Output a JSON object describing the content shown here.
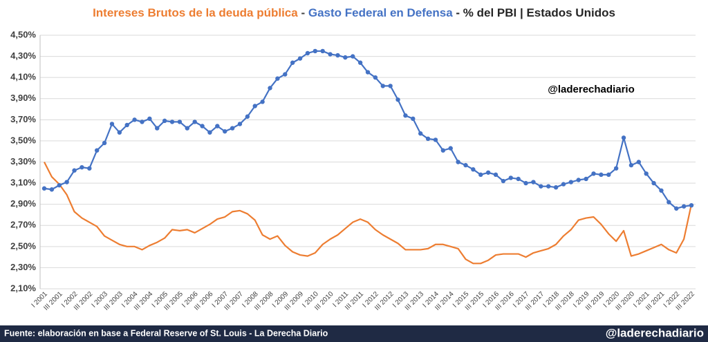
{
  "chart_data": {
    "type": "line",
    "title_separator": "-",
    "title_suffix": "- % del PBI | Estados Unidos",
    "annotation": "@laderechadiario",
    "categories": [
      "I 2001",
      null,
      "III 2001",
      null,
      "I 2002",
      null,
      "III 2002",
      null,
      "I 2003",
      null,
      "III 2003",
      null,
      "I 2004",
      null,
      "III 2004",
      null,
      "I 2005",
      null,
      "III 2005",
      null,
      "I 2006",
      null,
      "III 2006",
      null,
      "I 2007",
      null,
      "III 2007",
      null,
      "I 2008",
      null,
      "III 2008",
      null,
      "I 2009",
      null,
      "III 2009",
      null,
      "I 2010",
      null,
      "III 2010",
      null,
      "I 2011",
      null,
      "III 2011",
      null,
      "I 2012",
      null,
      "III 2012",
      null,
      "I 2013",
      null,
      "III 2013",
      null,
      "I 2014",
      null,
      "III 2014",
      null,
      "I 2015",
      null,
      "III 2015",
      null,
      "I 2016",
      null,
      "III 2016",
      null,
      "I 2017",
      null,
      "III 2017",
      null,
      "I 2018",
      null,
      "III 2018",
      null,
      "I 2019",
      null,
      "III 2019",
      null,
      "I 2020",
      null,
      "III 2020",
      null,
      "I 2021",
      null,
      "III 2021",
      null,
      "I 2022",
      null,
      "III 2022"
    ],
    "series": [
      {
        "name": "Intereses Brutos de la deuda pública",
        "color": "#ed7d31",
        "markers": false,
        "values": [
          3.3,
          3.16,
          3.09,
          2.99,
          2.83,
          2.77,
          2.73,
          2.69,
          2.6,
          2.56,
          2.52,
          2.5,
          2.5,
          2.47,
          2.51,
          2.54,
          2.58,
          2.66,
          2.65,
          2.66,
          2.63,
          2.67,
          2.71,
          2.76,
          2.78,
          2.83,
          2.84,
          2.81,
          2.75,
          2.61,
          2.57,
          2.6,
          2.51,
          2.45,
          2.42,
          2.41,
          2.44,
          2.52,
          2.57,
          2.61,
          2.67,
          2.73,
          2.76,
          2.73,
          2.66,
          2.61,
          2.57,
          2.53,
          2.47,
          2.47,
          2.47,
          2.48,
          2.52,
          2.52,
          2.5,
          2.48,
          2.38,
          2.34,
          2.34,
          2.37,
          2.42,
          2.43,
          2.43,
          2.43,
          2.4,
          2.44,
          2.46,
          2.48,
          2.52,
          2.6,
          2.66,
          2.75,
          2.77,
          2.78,
          2.71,
          2.62,
          2.55,
          2.65,
          2.41,
          2.43,
          2.46,
          2.49,
          2.52,
          2.47,
          2.44,
          2.57,
          2.9
        ]
      },
      {
        "name": "Gasto Federal en Defensa",
        "color": "#4472c4",
        "markers": true,
        "values": [
          3.05,
          3.04,
          3.08,
          3.11,
          3.22,
          3.25,
          3.24,
          3.41,
          3.48,
          3.66,
          3.58,
          3.65,
          3.7,
          3.68,
          3.71,
          3.62,
          3.69,
          3.68,
          3.68,
          3.62,
          3.68,
          3.64,
          3.58,
          3.64,
          3.59,
          3.62,
          3.66,
          3.73,
          3.83,
          3.87,
          4.0,
          4.09,
          4.13,
          4.24,
          4.28,
          4.33,
          4.35,
          4.35,
          4.32,
          4.31,
          4.29,
          4.3,
          4.24,
          4.15,
          4.1,
          4.02,
          4.02,
          3.89,
          3.74,
          3.71,
          3.57,
          3.52,
          3.51,
          3.41,
          3.43,
          3.3,
          3.27,
          3.23,
          3.18,
          3.2,
          3.18,
          3.12,
          3.15,
          3.14,
          3.1,
          3.11,
          3.07,
          3.07,
          3.06,
          3.09,
          3.11,
          3.13,
          3.14,
          3.19,
          3.18,
          3.18,
          3.24,
          3.53,
          3.27,
          3.3,
          3.19,
          3.1,
          3.03,
          2.92,
          2.86,
          2.88,
          2.89
        ]
      }
    ],
    "ylim": [
      2.1,
      4.5
    ],
    "yticks": [
      {
        "value": 2.1,
        "label": "2,10%"
      },
      {
        "value": 2.3,
        "label": "2,30%"
      },
      {
        "value": 2.5,
        "label": "2,50%"
      },
      {
        "value": 2.7,
        "label": "2,70%"
      },
      {
        "value": 2.9,
        "label": "2,90%"
      },
      {
        "value": 3.1,
        "label": "3,10%"
      },
      {
        "value": 3.3,
        "label": "3,30%"
      },
      {
        "value": 3.5,
        "label": "3,50%"
      },
      {
        "value": 3.7,
        "label": "3,70%"
      },
      {
        "value": 3.9,
        "label": "3,90%"
      },
      {
        "value": 4.1,
        "label": "4,10%"
      },
      {
        "value": 4.3,
        "label": "4,30%"
      },
      {
        "value": 4.5,
        "label": "4,50%"
      }
    ],
    "grid": true
  },
  "footer": {
    "source": "Fuente: elaboración en base a Federal Reserve of St. Louis - La Derecha Diario",
    "handle": "@laderechadiario"
  }
}
